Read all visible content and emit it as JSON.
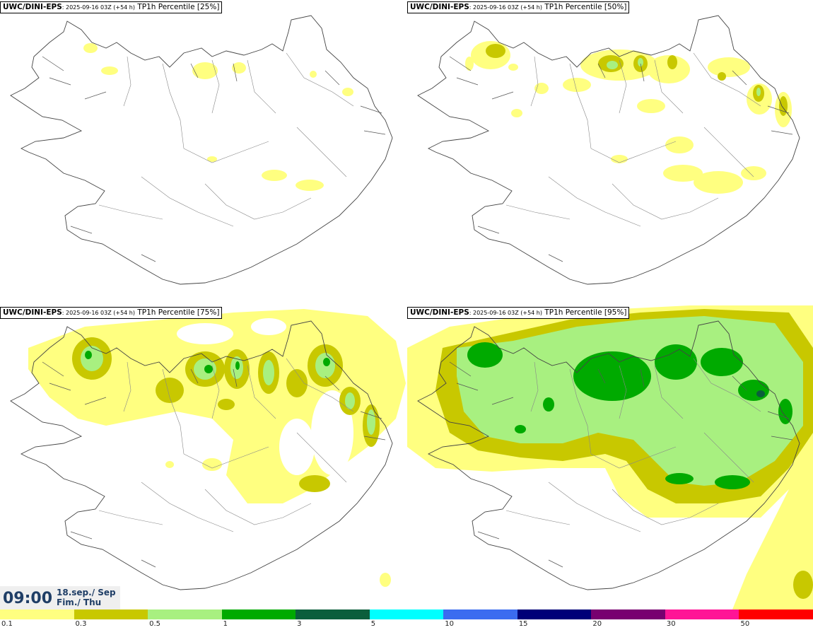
{
  "panels": [
    {
      "model": "UWC/DINI-EPS",
      "run": ": 2025-09-16 03Z (+54 h)",
      "product": " TP1h Percentile [25%]"
    },
    {
      "model": "UWC/DINI-EPS",
      "run": ": 2025-09-16 03Z (+54 h)",
      "product": " TP1h Percentile [50%]"
    },
    {
      "model": "UWC/DINI-EPS",
      "run": ": 2025-09-16 03Z (+54 h)",
      "product": " TP1h Percentile [75%]"
    },
    {
      "model": "UWC/DINI-EPS",
      "run": ": 2025-09-16 03Z (+54 h)",
      "product": " TP1h Percentile [95%]"
    }
  ],
  "valid_time": {
    "time": "09:00",
    "date_line1": "18.sep./ Sep",
    "date_line2": "Fim./ Thu"
  },
  "legend": {
    "levels": [
      "0.1",
      "0.3",
      "0.5",
      "1",
      "3",
      "5",
      "10",
      "15",
      "20",
      "30",
      "50"
    ],
    "colors": [
      "#ffff80",
      "#c8c800",
      "#a8f080",
      "#00aa00",
      "#0b5e3c",
      "#00ffff",
      "#3b6cf0",
      "#000078",
      "#780070",
      "#ff1496",
      "#ff0000"
    ]
  },
  "colors": {
    "land_outline": "#444444",
    "time_text": "#1f3e66"
  }
}
